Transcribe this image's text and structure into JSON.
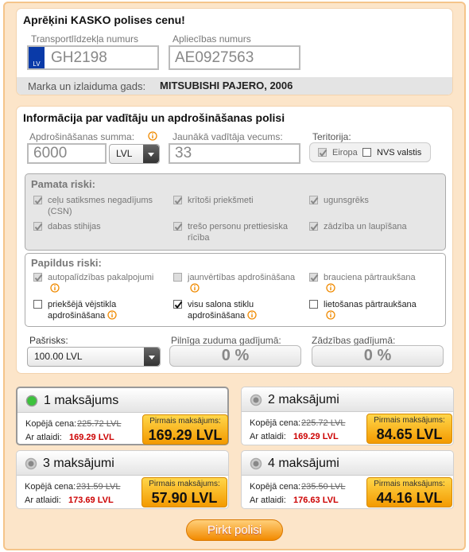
{
  "calculator": {
    "title": "Aprēķini KASKO polises cenu!",
    "vehicle_label": "Transportlīdzekļa numurs",
    "vehicle_value": "GH2198",
    "flag_label": "LV",
    "cert_label": "Apliecības numurs",
    "cert_value": "AE0927563",
    "model_label": "Marka un izlaiduma gads:",
    "model_value": "MITSUBISHI PAJERO, 2006"
  },
  "policy": {
    "title": "Informācija par vadītāju un apdrošināšanas polisi",
    "sum_label": "Apdrošināšanas summa:",
    "sum_value": "6000",
    "currency": "LVL",
    "age_label": "Jaunākā vadītāja vecums:",
    "age_value": "33",
    "territory_label": "Teritorija:",
    "territory_options": [
      {
        "label": "Eiropa",
        "checked": true,
        "disabled": true
      },
      {
        "label": "NVS valstis",
        "checked": false,
        "disabled": false
      }
    ],
    "basic_risks": {
      "title": "Pamata riski:",
      "items": [
        {
          "label": "ceļu satiksmes negadījums (CSN)",
          "checked": true,
          "disabled": true,
          "info": false
        },
        {
          "label": "krītoši priekšmeti",
          "checked": true,
          "disabled": true,
          "info": false
        },
        {
          "label": "ugunsgrēks",
          "checked": true,
          "disabled": true,
          "info": false
        },
        {
          "label": "dabas stihijas",
          "checked": true,
          "disabled": true,
          "info": false
        },
        {
          "label": "trešo personu prettiesiska rīcība",
          "checked": true,
          "disabled": true,
          "info": false
        },
        {
          "label": "zādzība un laupīšana",
          "checked": true,
          "disabled": true,
          "info": false
        }
      ]
    },
    "additional_risks": {
      "title": "Papildus riski:",
      "items": [
        {
          "label": "autopalīdzības pakalpojumi",
          "checked": true,
          "disabled": true,
          "info": true
        },
        {
          "label": "jaunvērtības apdrošināšana",
          "checked": false,
          "disabled": true,
          "info": true
        },
        {
          "label": "brauciena pārtraukšana",
          "checked": true,
          "disabled": true,
          "info": true
        },
        {
          "label": "priekšējā vējstikla apdrošināšana",
          "checked": false,
          "disabled": false,
          "info": true
        },
        {
          "label": "visu salona stiklu apdrošināšana",
          "checked": true,
          "disabled": false,
          "info": true
        },
        {
          "label": "lietošanas pārtraukšana",
          "checked": false,
          "disabled": false,
          "info": true
        }
      ]
    },
    "deductible_label": "Pašrisks:",
    "deductible_value": "100.00 LVL",
    "total_loss_label": "Pilnīga zuduma gadījumā:",
    "total_loss_value": "0 %",
    "theft_label": "Zādzības gadījumā:",
    "theft_value": "0 %"
  },
  "payment_options": [
    {
      "title": "1 maksājums",
      "selected": true,
      "total_label": "Kopējā cena:",
      "total": "225.72 LVL",
      "discount_label": "Ar atlaidi:",
      "discount": "169.29 LVL",
      "first_label": "Pirmais maksājums:",
      "first": "169.29 LVL"
    },
    {
      "title": "2 maksājumi",
      "selected": false,
      "total_label": "Kopējā cena:",
      "total": "225.72 LVL",
      "discount_label": "Ar atlaidi:",
      "discount": "169.29 LVL",
      "first_label": "Pirmais maksājums:",
      "first": "84.65 LVL"
    },
    {
      "title": "3 maksājumi",
      "selected": false,
      "total_label": "Kopējā cena:",
      "total": "231.59 LVL",
      "discount_label": "Ar atlaidi:",
      "discount": "173.69 LVL",
      "first_label": "Pirmais maksājums:",
      "first": "57.90 LVL"
    },
    {
      "title": "4 maksājumi",
      "selected": false,
      "total_label": "Kopējā cena:",
      "total": "235.50 LVL",
      "discount_label": "Ar atlaidi:",
      "discount": "176.63 LVL",
      "first_label": "Pirmais maksājums:",
      "first": "44.16 LVL"
    }
  ],
  "button": "Pirkt polisi"
}
